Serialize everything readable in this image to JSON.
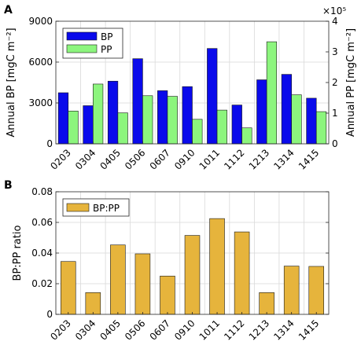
{
  "chart_data": [
    {
      "panel_label": "A",
      "type": "bar",
      "categories": [
        "0203",
        "0304",
        "0405",
        "0506",
        "0607",
        "0910",
        "1011",
        "1112",
        "1213",
        "1314",
        "1415"
      ],
      "ylabel": "Annual BP [mgC m⁻²]",
      "ylabel_right": "Annual PP [mgC m⁻²]",
      "ylim": [
        0,
        9000
      ],
      "yticks": [
        "0",
        "3000",
        "6000",
        "9000"
      ],
      "ylim_right": [
        0,
        400000
      ],
      "yticks_right": [
        "0",
        "1",
        "2",
        "3",
        "4"
      ],
      "right_exponent": "×10⁵",
      "grid": true,
      "legend_position": "top-left",
      "series": [
        {
          "name": "BP",
          "color": "#0a0aeb",
          "axis": "left",
          "values": [
            3750,
            2800,
            4600,
            6250,
            3900,
            4200,
            7000,
            2850,
            4700,
            5100,
            3350
          ]
        },
        {
          "name": "PP",
          "color": "#8cf57d",
          "axis": "right",
          "values": [
            107000,
            195000,
            101000,
            157000,
            155000,
            80000,
            110000,
            52000,
            333000,
            160000,
            105000
          ]
        }
      ]
    },
    {
      "panel_label": "B",
      "type": "bar",
      "categories": [
        "0203",
        "0304",
        "0405",
        "0506",
        "0607",
        "0910",
        "1011",
        "1112",
        "1213",
        "1314",
        "1415"
      ],
      "ylabel": "BP:PP ratio",
      "ylim": [
        0,
        0.08
      ],
      "yticks": [
        "0",
        "0.02",
        "0.04",
        "0.06",
        "0.08"
      ],
      "grid": true,
      "legend_position": "top-left",
      "series": [
        {
          "name": "BP:PP",
          "color": "#e6b43c",
          "values": [
            0.0345,
            0.0142,
            0.0453,
            0.0395,
            0.025,
            0.0515,
            0.0625,
            0.0538,
            0.0142,
            0.0315,
            0.0313
          ]
        }
      ]
    }
  ]
}
